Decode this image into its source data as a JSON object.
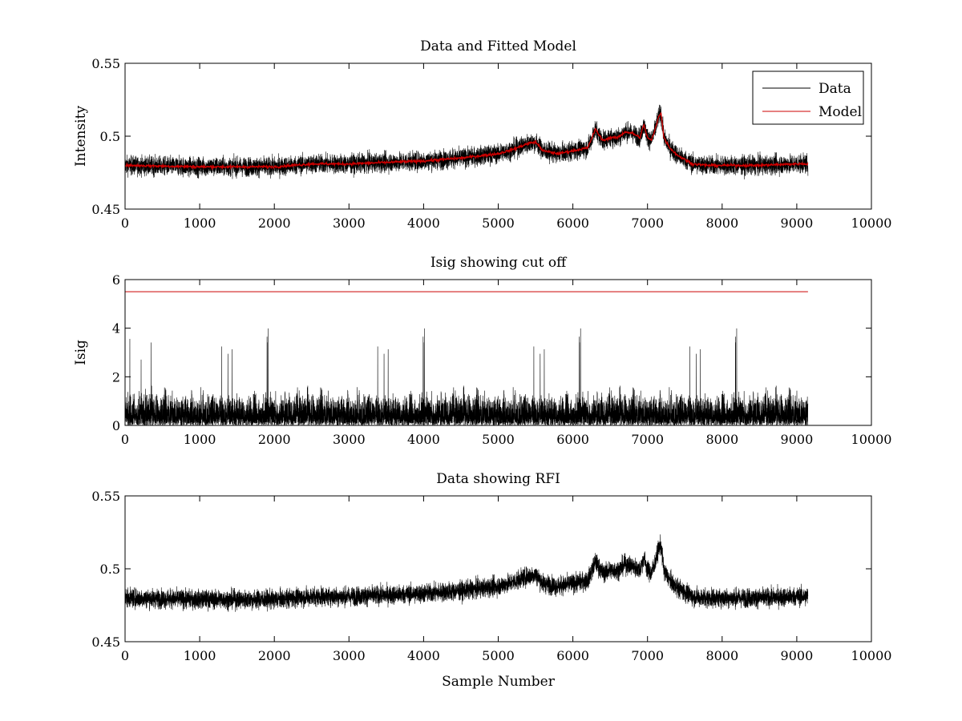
{
  "chart_data": [
    {
      "type": "line",
      "title": "Data and Fitted Model",
      "xlabel": "",
      "ylabel": "Intensity",
      "xlim": [
        0,
        10000
      ],
      "ylim": [
        0.45,
        0.55
      ],
      "xticks": [
        0,
        1000,
        2000,
        3000,
        4000,
        5000,
        6000,
        7000,
        8000,
        9000,
        10000
      ],
      "xtick_labels": [
        "0",
        "1000",
        "2000",
        "3000",
        "4000",
        "5000",
        "6000",
        "7000",
        "8000",
        "9000",
        "10000"
      ],
      "yticks": [
        0.45,
        0.5,
        0.55
      ],
      "ytick_labels": [
        "0.45",
        "0.5",
        "0.55"
      ],
      "grid": false,
      "legend": "top-right",
      "series": [
        {
          "name": "Data",
          "color": "#000000",
          "style": "noisy",
          "noise": 0.0045,
          "x": [
            0,
            1000,
            2000,
            2500,
            3000,
            3500,
            4000,
            4500,
            5000,
            5200,
            5400,
            5500,
            5600,
            5800,
            6000,
            6200,
            6280,
            6300,
            6400,
            6500,
            6600,
            6700,
            6800,
            6900,
            6950,
            7000,
            7050,
            7100,
            7150,
            7180,
            7220,
            7300,
            7400,
            7500,
            7600,
            7800,
            8000,
            8500,
            9000,
            9150
          ],
          "y": [
            0.48,
            0.479,
            0.479,
            0.481,
            0.481,
            0.482,
            0.483,
            0.485,
            0.488,
            0.491,
            0.495,
            0.496,
            0.49,
            0.488,
            0.49,
            0.492,
            0.502,
            0.505,
            0.497,
            0.499,
            0.499,
            0.503,
            0.502,
            0.499,
            0.508,
            0.499,
            0.497,
            0.504,
            0.514,
            0.516,
            0.499,
            0.492,
            0.487,
            0.484,
            0.481,
            0.48,
            0.48,
            0.48,
            0.481,
            0.481
          ]
        },
        {
          "name": "Model",
          "color": "#cc0000",
          "style": "smooth",
          "x": [
            0,
            1000,
            2000,
            2500,
            3000,
            3500,
            4000,
            4500,
            5000,
            5200,
            5400,
            5500,
            5600,
            5800,
            6000,
            6200,
            6280,
            6300,
            6400,
            6500,
            6600,
            6700,
            6800,
            6900,
            6950,
            7000,
            7050,
            7100,
            7150,
            7180,
            7220,
            7300,
            7400,
            7500,
            7600,
            7800,
            8000,
            8500,
            9000,
            9150
          ],
          "y": [
            0.48,
            0.479,
            0.479,
            0.481,
            0.481,
            0.482,
            0.483,
            0.485,
            0.488,
            0.491,
            0.495,
            0.496,
            0.49,
            0.488,
            0.49,
            0.492,
            0.502,
            0.505,
            0.497,
            0.499,
            0.499,
            0.503,
            0.502,
            0.499,
            0.508,
            0.499,
            0.497,
            0.504,
            0.514,
            0.516,
            0.499,
            0.492,
            0.487,
            0.484,
            0.481,
            0.48,
            0.48,
            0.48,
            0.481,
            0.481
          ]
        }
      ]
    },
    {
      "type": "line",
      "title": "Isig showing cut off",
      "xlabel": "",
      "ylabel": "Isig",
      "xlim": [
        0,
        10000
      ],
      "ylim": [
        0,
        6
      ],
      "xticks": [
        0,
        1000,
        2000,
        3000,
        4000,
        5000,
        6000,
        7000,
        8000,
        9000,
        10000
      ],
      "xtick_labels": [
        "0",
        "1000",
        "2000",
        "3000",
        "4000",
        "5000",
        "6000",
        "7000",
        "8000",
        "9000",
        "10000"
      ],
      "yticks": [
        0,
        2,
        4,
        6
      ],
      "ytick_labels": [
        "0",
        "2",
        "4",
        "6"
      ],
      "grid": false,
      "series": [
        {
          "color": "#000000",
          "style": "abs-noise",
          "x": [
            0,
            9150
          ],
          "y": [
            0.8,
            0.8
          ],
          "peak": 4.0
        },
        {
          "color": "#cc0000",
          "style": "flat",
          "x": [
            0,
            9150
          ],
          "y": [
            5.5,
            5.5
          ]
        }
      ]
    },
    {
      "type": "line",
      "title": "Data showing RFI",
      "xlabel": "Sample Number",
      "ylabel": "",
      "xlim": [
        0,
        10000
      ],
      "ylim": [
        0.45,
        0.55
      ],
      "xticks": [
        0,
        1000,
        2000,
        3000,
        4000,
        5000,
        6000,
        7000,
        8000,
        9000,
        10000
      ],
      "xtick_labels": [
        "0",
        "1000",
        "2000",
        "3000",
        "4000",
        "5000",
        "6000",
        "7000",
        "8000",
        "9000",
        "10000"
      ],
      "yticks": [
        0.45,
        0.5,
        0.55
      ],
      "ytick_labels": [
        "0.45",
        "0.5",
        "0.55"
      ],
      "grid": false,
      "series": [
        {
          "color": "#000000",
          "style": "noisy",
          "noise": 0.0045,
          "x": [
            0,
            1000,
            2000,
            2500,
            3000,
            3500,
            4000,
            4500,
            5000,
            5200,
            5400,
            5500,
            5600,
            5800,
            6000,
            6200,
            6280,
            6300,
            6400,
            6500,
            6600,
            6700,
            6800,
            6900,
            6950,
            7000,
            7050,
            7100,
            7150,
            7180,
            7220,
            7300,
            7400,
            7500,
            7600,
            7800,
            8000,
            8500,
            9000,
            9150
          ],
          "y": [
            0.48,
            0.479,
            0.479,
            0.481,
            0.481,
            0.482,
            0.483,
            0.485,
            0.488,
            0.491,
            0.495,
            0.496,
            0.49,
            0.488,
            0.49,
            0.492,
            0.502,
            0.505,
            0.497,
            0.499,
            0.499,
            0.503,
            0.502,
            0.499,
            0.508,
            0.499,
            0.497,
            0.504,
            0.514,
            0.516,
            0.499,
            0.492,
            0.487,
            0.484,
            0.481,
            0.48,
            0.48,
            0.48,
            0.481,
            0.481
          ]
        }
      ]
    }
  ]
}
